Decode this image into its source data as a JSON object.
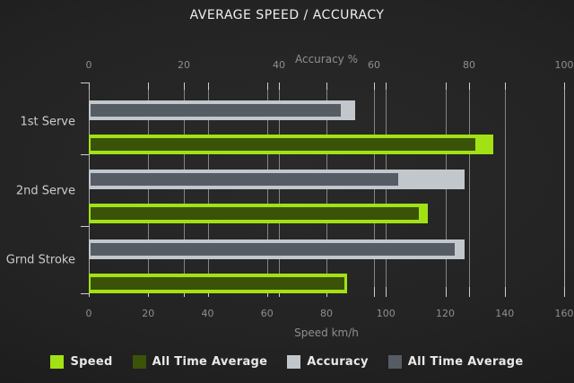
{
  "title": "AVERAGE SPEED / ACCURACY",
  "chart_data": {
    "type": "bar",
    "orientation": "horizontal",
    "categories": [
      "1st Serve",
      "2nd Serve",
      "Grnd Stroke"
    ],
    "axes": {
      "top": {
        "label": "Accuracy %",
        "min": 0,
        "max": 100,
        "ticks": [
          0,
          20,
          40,
          60,
          80,
          100
        ]
      },
      "bottom": {
        "label": "Speed km/h",
        "min": 0,
        "max": 160,
        "ticks": [
          0,
          20,
          40,
          60,
          80,
          100,
          120,
          140,
          160
        ]
      }
    },
    "series": [
      {
        "name": "Speed",
        "axis": "bottom",
        "role": "outer",
        "color": "#a2e214",
        "values": [
          136,
          114,
          87
        ]
      },
      {
        "name": "All Time Average",
        "axis": "bottom",
        "role": "inner-overlay-of-speed",
        "color": "#3b5308",
        "values": [
          130,
          111,
          86
        ]
      },
      {
        "name": "Accuracy",
        "axis": "top",
        "role": "outer",
        "color": "#c2c7cc",
        "values": [
          56,
          79,
          79
        ]
      },
      {
        "name": "All Time Average",
        "axis": "top",
        "role": "inner-overlay-of-accuracy",
        "color": "#565c64",
        "values": [
          53,
          65,
          77
        ]
      }
    ],
    "grid": true,
    "legend_position": "bottom"
  },
  "colors": {
    "background_center": "#2a2a2a",
    "background_edge": "#171717",
    "gridline": "rgba(210,210,210,0.55)",
    "tick": "#cfcfcf",
    "title_text": "#efefef",
    "axis_text": "#8f8f8f",
    "category_text": "#cccccc",
    "legend_text": "#e9e9e9"
  }
}
